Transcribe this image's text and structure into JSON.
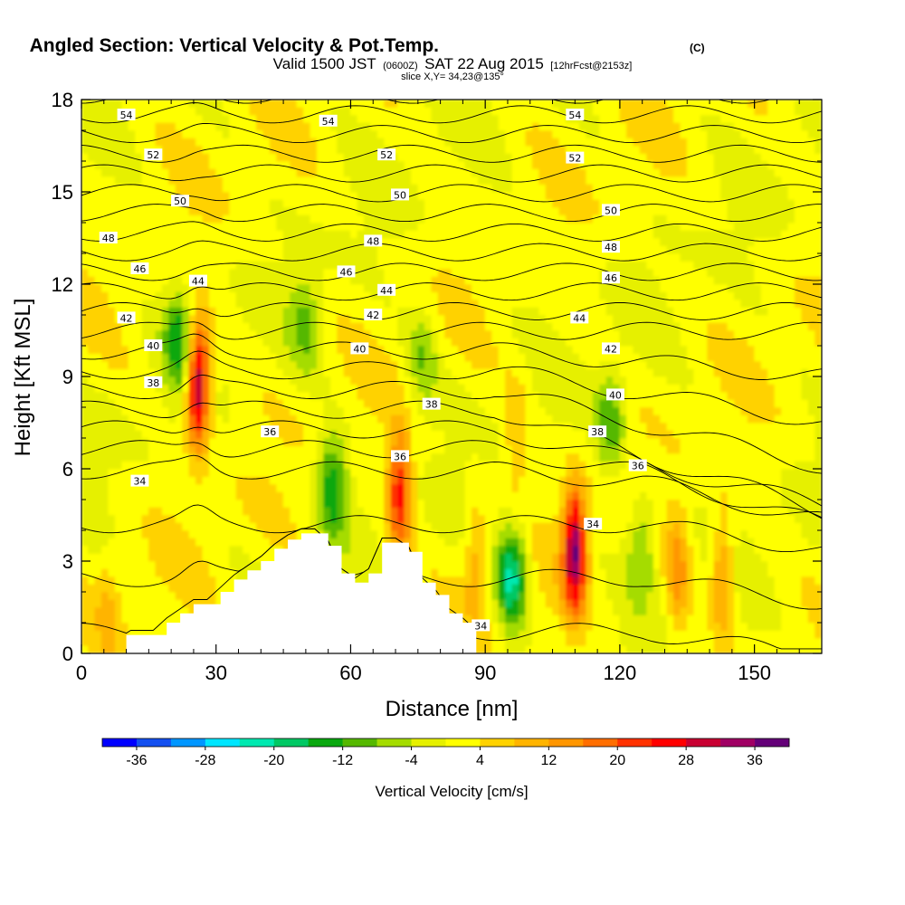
{
  "chart_data": {
    "type": "heatmap",
    "title": "Angled Section: Vertical Velocity & Pot.Temp.",
    "title_mark": "(C)",
    "subtitle_parts": [
      "Valid 1500 JST",
      "(0600Z)",
      "SAT 22 Aug 2015",
      "[12hrFcst@2153z]"
    ],
    "slice_label": "slice X,Y= 34,23@135°",
    "xlabel": "Distance [nm]",
    "ylabel": "Height [Kft MSL]",
    "xlim": [
      0,
      165
    ],
    "ylim": [
      0,
      18
    ],
    "xticks": [
      "0",
      "30",
      "60",
      "90",
      "120",
      "150"
    ],
    "yticks": [
      "0",
      "3",
      "6",
      "9",
      "12",
      "15",
      "18"
    ],
    "colorbar": {
      "label": "Vertical Velocity [cm/s]",
      "levels": [
        -40,
        -36,
        -32,
        -28,
        -24,
        -20,
        -16,
        -12,
        -8,
        -4,
        0,
        4,
        8,
        12,
        16,
        20,
        24,
        28,
        32,
        36,
        40
      ],
      "tick_labels": [
        "-36",
        "-28",
        "-20",
        "-12",
        "-4",
        "4",
        "12",
        "20",
        "28",
        "36"
      ],
      "colors": [
        "#0000ff",
        "#1450f0",
        "#0096ff",
        "#00e6ff",
        "#00e8b0",
        "#00c864",
        "#0aa810",
        "#55b800",
        "#a5dc00",
        "#e6f000",
        "#ffff00",
        "#ffd200",
        "#ffb400",
        "#ff9600",
        "#ff6e00",
        "#ff3200",
        "#ff0000",
        "#c80032",
        "#a00064",
        "#640078"
      ]
    },
    "updraft_cores": [
      {
        "x": 26,
        "y": 8.8,
        "w_max": 38
      },
      {
        "x": 110,
        "y": 3.4,
        "w_max": 36
      },
      {
        "x": 71,
        "y": 5.2,
        "w_max": 26
      },
      {
        "x": 88,
        "y": 3.0,
        "w_max": 12
      },
      {
        "x": 133,
        "y": 2.6,
        "w_max": 14
      },
      {
        "x": 143,
        "y": 2.5,
        "w_max": 16
      },
      {
        "x": 97,
        "y": 7.0,
        "w_max": 9
      },
      {
        "x": 6,
        "y": 1.2,
        "w_max": 8
      }
    ],
    "downdraft_cores": [
      {
        "x": 96,
        "y": 2.5,
        "w_min": -22
      },
      {
        "x": 56,
        "y": 5.5,
        "w_min": -16
      },
      {
        "x": 118,
        "y": 7.5,
        "w_min": -12
      },
      {
        "x": 125,
        "y": 3.6,
        "w_min": -10
      },
      {
        "x": 50,
        "y": 10.8,
        "w_min": -8
      },
      {
        "x": 22,
        "y": 10.2,
        "w_min": -14
      },
      {
        "x": 76,
        "y": 9.5,
        "w_min": -8
      }
    ],
    "theta_contour_labels": [
      {
        "label": "54",
        "x": 10,
        "y": 17.5
      },
      {
        "label": "54",
        "x": 55,
        "y": 17.3
      },
      {
        "label": "54",
        "x": 110,
        "y": 17.5
      },
      {
        "label": "52",
        "x": 16,
        "y": 16.2
      },
      {
        "label": "52",
        "x": 68,
        "y": 16.2
      },
      {
        "label": "52",
        "x": 110,
        "y": 16.1
      },
      {
        "label": "50",
        "x": 22,
        "y": 14.7
      },
      {
        "label": "50",
        "x": 71,
        "y": 14.9
      },
      {
        "label": "50",
        "x": 118,
        "y": 14.4
      },
      {
        "label": "48",
        "x": 6,
        "y": 13.5
      },
      {
        "label": "48",
        "x": 65,
        "y": 13.4
      },
      {
        "label": "48",
        "x": 118,
        "y": 13.2
      },
      {
        "label": "46",
        "x": 13,
        "y": 12.5
      },
      {
        "label": "46",
        "x": 59,
        "y": 12.4
      },
      {
        "label": "46",
        "x": 118,
        "y": 12.2
      },
      {
        "label": "44",
        "x": 26,
        "y": 12.1
      },
      {
        "label": "44",
        "x": 68,
        "y": 11.8
      },
      {
        "label": "44",
        "x": 111,
        "y": 10.9
      },
      {
        "label": "42",
        "x": 10,
        "y": 10.9
      },
      {
        "label": "42",
        "x": 65,
        "y": 11.0
      },
      {
        "label": "42",
        "x": 118,
        "y": 9.9
      },
      {
        "label": "40",
        "x": 16,
        "y": 10.0
      },
      {
        "label": "40",
        "x": 62,
        "y": 9.9
      },
      {
        "label": "40",
        "x": 119,
        "y": 8.4
      },
      {
        "label": "38",
        "x": 16,
        "y": 8.8
      },
      {
        "label": "38",
        "x": 78,
        "y": 8.1
      },
      {
        "label": "38",
        "x": 115,
        "y": 7.2
      },
      {
        "label": "36",
        "x": 42,
        "y": 7.2
      },
      {
        "label": "36",
        "x": 71,
        "y": 6.4
      },
      {
        "label": "36",
        "x": 124,
        "y": 6.1
      },
      {
        "label": "34",
        "x": 13,
        "y": 5.6
      },
      {
        "label": "34",
        "x": 114,
        "y": 4.2
      },
      {
        "label": "34",
        "x": 89,
        "y": 0.9
      }
    ],
    "terrain_profile": [
      [
        10,
        0.6
      ],
      [
        13,
        0.6
      ],
      [
        16,
        0.6
      ],
      [
        19,
        1.0
      ],
      [
        22,
        1.3
      ],
      [
        25,
        1.6
      ],
      [
        28,
        1.6
      ],
      [
        31,
        2.0
      ],
      [
        34,
        2.4
      ],
      [
        37,
        2.7
      ],
      [
        40,
        3.0
      ],
      [
        43,
        3.4
      ],
      [
        46,
        3.7
      ],
      [
        49,
        3.9
      ],
      [
        52,
        3.9
      ],
      [
        55,
        3.5
      ],
      [
        58,
        2.6
      ],
      [
        61,
        2.3
      ],
      [
        64,
        2.6
      ],
      [
        67,
        3.6
      ],
      [
        70,
        3.6
      ],
      [
        73,
        3.3
      ],
      [
        76,
        2.3
      ],
      [
        79,
        1.9
      ],
      [
        82,
        1.3
      ],
      [
        85,
        1.0
      ],
      [
        88,
        0.6
      ]
    ]
  }
}
